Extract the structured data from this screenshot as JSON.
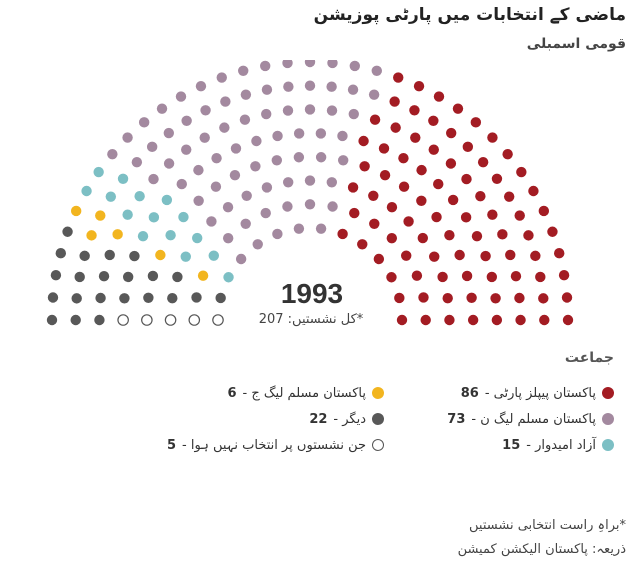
{
  "title": "ماضی کے انتخابات میں پارٹی پوزیشن",
  "subtitle": "قومی اسمبلی",
  "legend_heading": "جماعت",
  "footnote": "*براہِ راست انتخابی نشستیں",
  "source": "ذریعہ: پاکستان الیکشن کمیشن",
  "chart_data": {
    "type": "parliament",
    "year": "1993",
    "total_label": "*کل نشستیں: 207",
    "total_seats": 207,
    "series": [
      {
        "name": "پاکستان پیپلز پارٹی",
        "value": 86,
        "color": "#a31c23",
        "hollow": false
      },
      {
        "name": "پاکستان مسلم لیگ ن",
        "value": 73,
        "color": "#a3899f",
        "hollow": false
      },
      {
        "name": "آزاد امیدوار",
        "value": 15,
        "color": "#7cbfc4",
        "hollow": false
      },
      {
        "name": "پاکستان مسلم لیگ ج",
        "value": 6,
        "color": "#f2b51f",
        "hollow": false
      },
      {
        "name": "دیگر",
        "value": 22,
        "color": "#585858",
        "hollow": false
      },
      {
        "name": "جن نشستوں پر انتخاب نہیں ہوا",
        "value": 5,
        "color": "#555555",
        "hollow": true
      }
    ]
  },
  "legend": {
    "right": [
      {
        "label": "پاکستان پیپلز پارٹی - ",
        "value": "86",
        "color": "#a31c23",
        "hollow": false
      },
      {
        "label": "پاکستان مسلم لیگ ن - ",
        "value": "73",
        "color": "#a3899f",
        "hollow": false
      },
      {
        "label": "آزاد امیدوار - ",
        "value": "15",
        "color": "#7cbfc4",
        "hollow": false
      }
    ],
    "left": [
      {
        "label": "پاکستان مسلم لیگ ج - ",
        "value": "6",
        "color": "#f2b51f",
        "hollow": false
      },
      {
        "label": "دیگر - ",
        "value": "22",
        "color": "#585858",
        "hollow": false
      },
      {
        "label": "جن نشستوں پر انتخاب نہیں ہوا - ",
        "value": "5",
        "color": "#555555",
        "hollow": true
      }
    ]
  }
}
